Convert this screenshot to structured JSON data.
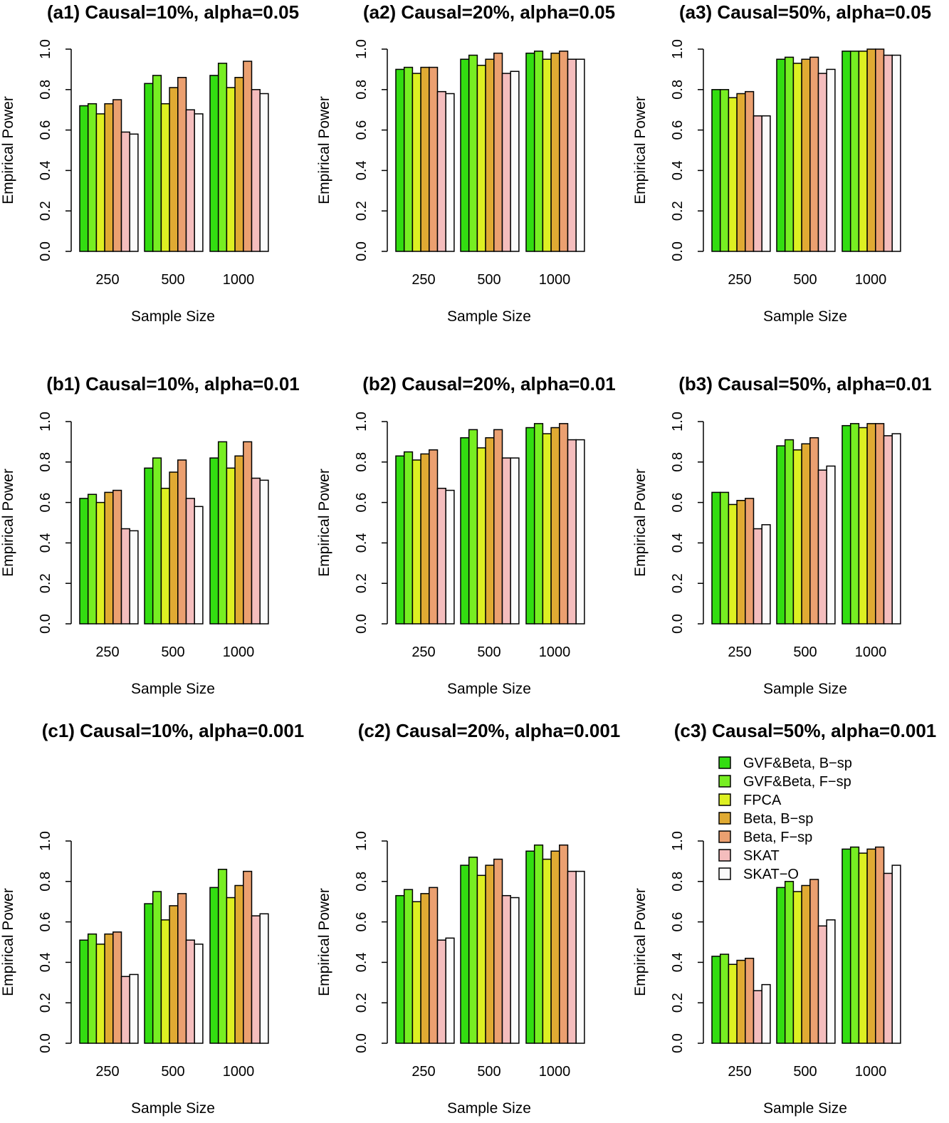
{
  "legend": {
    "labels": [
      "GVF&Beta, B−sp",
      "GVF&Beta, F−sp",
      "FPCA",
      "Beta, B−sp",
      "Beta, F−sp",
      "SKAT",
      "SKAT−O"
    ],
    "colors": [
      "#33dd11",
      "#77ee22",
      "#ddf022",
      "#e0aa33",
      "#eba070",
      "#f4bdbd",
      "#fbfbfb"
    ]
  },
  "chart_data": [
    {
      "type": "bar",
      "title": "(a1) Causal=10%, alpha=0.05",
      "xlabel": "Sample Size",
      "ylabel": "Empirical Power",
      "ylim": [
        0,
        1
      ],
      "yticks": [
        "0.0",
        "0.2",
        "0.4",
        "0.6",
        "0.8",
        "1.0"
      ],
      "categories": [
        "250",
        "500",
        "1000"
      ],
      "grid": false,
      "series": [
        {
          "name": "GVF&Beta, B−sp",
          "values": [
            0.72,
            0.83,
            0.87
          ]
        },
        {
          "name": "GVF&Beta, F−sp",
          "values": [
            0.73,
            0.87,
            0.93
          ]
        },
        {
          "name": "FPCA",
          "values": [
            0.68,
            0.73,
            0.81
          ]
        },
        {
          "name": "Beta, B−sp",
          "values": [
            0.73,
            0.81,
            0.86
          ]
        },
        {
          "name": "Beta, F−sp",
          "values": [
            0.75,
            0.86,
            0.94
          ]
        },
        {
          "name": "SKAT",
          "values": [
            0.59,
            0.7,
            0.8
          ]
        },
        {
          "name": "SKAT−O",
          "values": [
            0.58,
            0.68,
            0.78
          ]
        }
      ]
    },
    {
      "type": "bar",
      "title": "(a2) Causal=20%, alpha=0.05",
      "xlabel": "Sample Size",
      "ylabel": "Empirical Power",
      "ylim": [
        0,
        1
      ],
      "yticks": [
        "0.0",
        "0.2",
        "0.4",
        "0.6",
        "0.8",
        "1.0"
      ],
      "categories": [
        "250",
        "500",
        "1000"
      ],
      "grid": false,
      "series": [
        {
          "name": "GVF&Beta, B−sp",
          "values": [
            0.9,
            0.95,
            0.98
          ]
        },
        {
          "name": "GVF&Beta, F−sp",
          "values": [
            0.91,
            0.97,
            0.99
          ]
        },
        {
          "name": "FPCA",
          "values": [
            0.88,
            0.92,
            0.95
          ]
        },
        {
          "name": "Beta, B−sp",
          "values": [
            0.91,
            0.95,
            0.98
          ]
        },
        {
          "name": "Beta, F−sp",
          "values": [
            0.91,
            0.98,
            0.99
          ]
        },
        {
          "name": "SKAT",
          "values": [
            0.79,
            0.88,
            0.95
          ]
        },
        {
          "name": "SKAT−O",
          "values": [
            0.78,
            0.89,
            0.95
          ]
        }
      ]
    },
    {
      "type": "bar",
      "title": "(a3) Causal=50%, alpha=0.05",
      "xlabel": "Sample Size",
      "ylabel": "Empirical Power",
      "ylim": [
        0,
        1
      ],
      "yticks": [
        "0.0",
        "0.2",
        "0.4",
        "0.6",
        "0.8",
        "1.0"
      ],
      "categories": [
        "250",
        "500",
        "1000"
      ],
      "grid": false,
      "series": [
        {
          "name": "GVF&Beta, B−sp",
          "values": [
            0.8,
            0.95,
            0.99
          ]
        },
        {
          "name": "GVF&Beta, F−sp",
          "values": [
            0.8,
            0.96,
            0.99
          ]
        },
        {
          "name": "FPCA",
          "values": [
            0.76,
            0.93,
            0.99
          ]
        },
        {
          "name": "Beta, B−sp",
          "values": [
            0.78,
            0.95,
            1.0
          ]
        },
        {
          "name": "Beta, F−sp",
          "values": [
            0.79,
            0.96,
            1.0
          ]
        },
        {
          "name": "SKAT",
          "values": [
            0.67,
            0.88,
            0.97
          ]
        },
        {
          "name": "SKAT−O",
          "values": [
            0.67,
            0.9,
            0.97
          ]
        }
      ]
    },
    {
      "type": "bar",
      "title": "(b1) Causal=10%, alpha=0.01",
      "xlabel": "Sample Size",
      "ylabel": "Empirical Power",
      "ylim": [
        0,
        1
      ],
      "yticks": [
        "0.0",
        "0.2",
        "0.4",
        "0.6",
        "0.8",
        "1.0"
      ],
      "categories": [
        "250",
        "500",
        "1000"
      ],
      "grid": false,
      "series": [
        {
          "name": "GVF&Beta, B−sp",
          "values": [
            0.62,
            0.77,
            0.82
          ]
        },
        {
          "name": "GVF&Beta, F−sp",
          "values": [
            0.64,
            0.82,
            0.9
          ]
        },
        {
          "name": "FPCA",
          "values": [
            0.6,
            0.67,
            0.77
          ]
        },
        {
          "name": "Beta, B−sp",
          "values": [
            0.65,
            0.75,
            0.83
          ]
        },
        {
          "name": "Beta, F−sp",
          "values": [
            0.66,
            0.81,
            0.9
          ]
        },
        {
          "name": "SKAT",
          "values": [
            0.47,
            0.62,
            0.72
          ]
        },
        {
          "name": "SKAT−O",
          "values": [
            0.46,
            0.58,
            0.71
          ]
        }
      ]
    },
    {
      "type": "bar",
      "title": "(b2) Causal=20%, alpha=0.01",
      "xlabel": "Sample Size",
      "ylabel": "Empirical Power",
      "ylim": [
        0,
        1
      ],
      "yticks": [
        "0.0",
        "0.2",
        "0.4",
        "0.6",
        "0.8",
        "1.0"
      ],
      "categories": [
        "250",
        "500",
        "1000"
      ],
      "grid": false,
      "series": [
        {
          "name": "GVF&Beta, B−sp",
          "values": [
            0.83,
            0.92,
            0.97
          ]
        },
        {
          "name": "GVF&Beta, F−sp",
          "values": [
            0.85,
            0.96,
            0.99
          ]
        },
        {
          "name": "FPCA",
          "values": [
            0.81,
            0.87,
            0.94
          ]
        },
        {
          "name": "Beta, B−sp",
          "values": [
            0.84,
            0.92,
            0.97
          ]
        },
        {
          "name": "Beta, F−sp",
          "values": [
            0.86,
            0.96,
            0.99
          ]
        },
        {
          "name": "SKAT",
          "values": [
            0.67,
            0.82,
            0.91
          ]
        },
        {
          "name": "SKAT−O",
          "values": [
            0.66,
            0.82,
            0.91
          ]
        }
      ]
    },
    {
      "type": "bar",
      "title": "(b3) Causal=50%, alpha=0.01",
      "xlabel": "Sample Size",
      "ylabel": "Empirical Power",
      "ylim": [
        0,
        1
      ],
      "yticks": [
        "0.0",
        "0.2",
        "0.4",
        "0.6",
        "0.8",
        "1.0"
      ],
      "categories": [
        "250",
        "500",
        "1000"
      ],
      "grid": false,
      "series": [
        {
          "name": "GVF&Beta, B−sp",
          "values": [
            0.65,
            0.88,
            0.98
          ]
        },
        {
          "name": "GVF&Beta, F−sp",
          "values": [
            0.65,
            0.91,
            0.99
          ]
        },
        {
          "name": "FPCA",
          "values": [
            0.59,
            0.86,
            0.97
          ]
        },
        {
          "name": "Beta, B−sp",
          "values": [
            0.61,
            0.89,
            0.99
          ]
        },
        {
          "name": "Beta, F−sp",
          "values": [
            0.62,
            0.92,
            0.99
          ]
        },
        {
          "name": "SKAT",
          "values": [
            0.47,
            0.76,
            0.93
          ]
        },
        {
          "name": "SKAT−O",
          "values": [
            0.49,
            0.78,
            0.94
          ]
        }
      ]
    },
    {
      "type": "bar",
      "title": "(c1) Causal=10%, alpha=0.001",
      "xlabel": "Sample Size",
      "ylabel": "Empirical Power",
      "ylim": [
        0,
        1
      ],
      "yticks": [
        "0.0",
        "0.2",
        "0.4",
        "0.6",
        "0.8",
        "1.0"
      ],
      "categories": [
        "250",
        "500",
        "1000"
      ],
      "grid": false,
      "series": [
        {
          "name": "GVF&Beta, B−sp",
          "values": [
            0.51,
            0.69,
            0.77
          ]
        },
        {
          "name": "GVF&Beta, F−sp",
          "values": [
            0.54,
            0.75,
            0.86
          ]
        },
        {
          "name": "FPCA",
          "values": [
            0.49,
            0.61,
            0.72
          ]
        },
        {
          "name": "Beta, B−sp",
          "values": [
            0.54,
            0.68,
            0.78
          ]
        },
        {
          "name": "Beta, F−sp",
          "values": [
            0.55,
            0.74,
            0.85
          ]
        },
        {
          "name": "SKAT",
          "values": [
            0.33,
            0.51,
            0.63
          ]
        },
        {
          "name": "SKAT−O",
          "values": [
            0.34,
            0.49,
            0.64
          ]
        }
      ]
    },
    {
      "type": "bar",
      "title": "(c2) Causal=20%, alpha=0.001",
      "xlabel": "Sample Size",
      "ylabel": "Empirical Power",
      "ylim": [
        0,
        1
      ],
      "yticks": [
        "0.0",
        "0.2",
        "0.4",
        "0.6",
        "0.8",
        "1.0"
      ],
      "categories": [
        "250",
        "500",
        "1000"
      ],
      "grid": false,
      "series": [
        {
          "name": "GVF&Beta, B−sp",
          "values": [
            0.73,
            0.88,
            0.95
          ]
        },
        {
          "name": "GVF&Beta, F−sp",
          "values": [
            0.76,
            0.92,
            0.98
          ]
        },
        {
          "name": "FPCA",
          "values": [
            0.7,
            0.83,
            0.91
          ]
        },
        {
          "name": "Beta, B−sp",
          "values": [
            0.74,
            0.88,
            0.95
          ]
        },
        {
          "name": "Beta, F−sp",
          "values": [
            0.77,
            0.91,
            0.98
          ]
        },
        {
          "name": "SKAT",
          "values": [
            0.51,
            0.73,
            0.85
          ]
        },
        {
          "name": "SKAT−O",
          "values": [
            0.52,
            0.72,
            0.85
          ]
        }
      ]
    },
    {
      "type": "bar",
      "title": "(c3) Causal=50%, alpha=0.001",
      "xlabel": "Sample Size",
      "ylabel": "Empirical Power",
      "ylim": [
        0,
        1
      ],
      "yticks": [
        "0.0",
        "0.2",
        "0.4",
        "0.6",
        "0.8",
        "1.0"
      ],
      "categories": [
        "250",
        "500",
        "1000"
      ],
      "grid": false,
      "legend": "top-right",
      "series": [
        {
          "name": "GVF&Beta, B−sp",
          "values": [
            0.43,
            0.77,
            0.96
          ]
        },
        {
          "name": "GVF&Beta, F−sp",
          "values": [
            0.44,
            0.8,
            0.97
          ]
        },
        {
          "name": "FPCA",
          "values": [
            0.39,
            0.75,
            0.94
          ]
        },
        {
          "name": "Beta, B−sp",
          "values": [
            0.41,
            0.78,
            0.96
          ]
        },
        {
          "name": "Beta, F−sp",
          "values": [
            0.42,
            0.81,
            0.97
          ]
        },
        {
          "name": "SKAT",
          "values": [
            0.26,
            0.58,
            0.84
          ]
        },
        {
          "name": "SKAT−O",
          "values": [
            0.29,
            0.61,
            0.88
          ]
        }
      ]
    }
  ]
}
